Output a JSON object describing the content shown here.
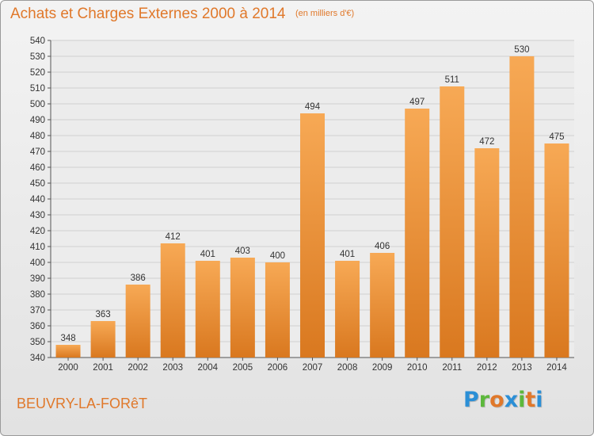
{
  "title": "Achats et Charges Externes 2000 à 2014",
  "unit": "(en milliers d'€)",
  "location": "BEUVRY-LA-FORêT",
  "logo": {
    "text": "Proxiti",
    "letters": [
      {
        "char": "P",
        "color": "#2b8fd6"
      },
      {
        "char": "r",
        "color": "#5cb83b"
      },
      {
        "char": "o",
        "color": "#e0782a"
      },
      {
        "char": "x",
        "color": "#2b8fd6"
      },
      {
        "char": "i",
        "color": "#5cb83b"
      },
      {
        "char": "t",
        "color": "#e0782a"
      },
      {
        "char": "i",
        "color": "#2b8fd6"
      }
    ]
  },
  "colors": {
    "accent": "#e0782a",
    "bar_light": "#f7a955",
    "bar_dark": "#d9781f",
    "grid": "#cfcfcf"
  },
  "chart_data": {
    "type": "bar",
    "title": "Achats et Charges Externes 2000 à 2014",
    "subtitle": "(en milliers d'€)",
    "categories": [
      "2000",
      "2001",
      "2002",
      "2003",
      "2004",
      "2005",
      "2006",
      "2007",
      "2008",
      "2009",
      "2010",
      "2011",
      "2012",
      "2013",
      "2014"
    ],
    "values": [
      348,
      363,
      386,
      412,
      401,
      403,
      400,
      494,
      401,
      406,
      497,
      511,
      472,
      530,
      475
    ],
    "ylim": [
      340,
      540
    ],
    "ytick_step": 10,
    "grid": true,
    "xlabel": "",
    "ylabel": ""
  }
}
